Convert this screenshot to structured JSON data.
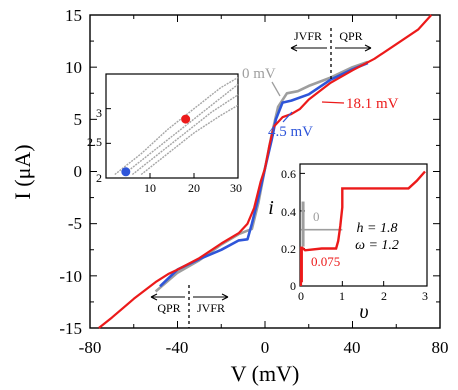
{
  "chart_data": [
    {
      "type": "line",
      "xlabel": "V (mV)",
      "ylabel": "I (μA)",
      "xlim": [
        -80,
        80
      ],
      "ylim": [
        -15,
        15
      ],
      "xticks": [
        "-80",
        "-40",
        "0",
        "40",
        "80"
      ],
      "yticks": [
        "15",
        "10",
        "5",
        "0",
        "-5",
        "-10",
        "-15"
      ],
      "series": [
        {
          "name": "0 mV",
          "color": "#9e9e9e",
          "x": [
            -50,
            -40,
            -30,
            -20,
            -12,
            -6,
            -3,
            0,
            3,
            6,
            10,
            15,
            20,
            30,
            40,
            47
          ],
          "y": [
            -11.5,
            -9.7,
            -8.5,
            -7.0,
            -6.0,
            -5.5,
            -3.0,
            0.3,
            3.5,
            6.2,
            7.5,
            7.7,
            8.2,
            9.0,
            10.0,
            10.5
          ]
        },
        {
          "name": "4.5 mV",
          "color": "#2e55d9",
          "x": [
            -48,
            -40,
            -30,
            -20,
            -12,
            -8,
            -6,
            -3,
            0,
            3,
            5,
            8,
            12,
            20,
            30,
            40,
            47
          ],
          "y": [
            -11.0,
            -9.4,
            -8.4,
            -7.5,
            -6.6,
            -6.5,
            -5.0,
            -2.5,
            0.3,
            3.0,
            5.0,
            6.6,
            6.8,
            7.4,
            8.8,
            9.8,
            10.4
          ]
        },
        {
          "name": "18.1 mV",
          "color": "#ec1a1a",
          "x": [
            -76,
            -70,
            -60,
            -50,
            -44,
            -40,
            -30,
            -20,
            -12,
            -8,
            -5,
            -2,
            0,
            2,
            4,
            8,
            12,
            16,
            20,
            30,
            40,
            50,
            60,
            70,
            76
          ],
          "y": [
            -15,
            -14.0,
            -12.2,
            -10.6,
            -9.8,
            -9.4,
            -8.3,
            -6.9,
            -5.9,
            -5.0,
            -3.5,
            -1.0,
            0.3,
            2.5,
            4.3,
            5.2,
            5.5,
            6.0,
            6.9,
            8.5,
            9.7,
            10.8,
            12.2,
            13.6,
            15
          ]
        }
      ],
      "annotations": {
        "top_left": "JVFR",
        "top_right": "QPR",
        "bottom_left": "QPR",
        "bottom_right": "JVFR",
        "series_labels": [
          "0 mV",
          "4.5 mV",
          "18.1 mV"
        ]
      }
    },
    {
      "type": "scatter",
      "xlim": [
        0,
        30
      ],
      "ylim": [
        2,
        3.5
      ],
      "xticks": [
        "10",
        "20",
        "30"
      ],
      "yticks": [
        "3",
        "2.5",
        "2"
      ],
      "markers": [
        {
          "color": "#2e55d9",
          "x": 4.5,
          "y": 2.09
        },
        {
          "color": "#ec1a1a",
          "x": 18.1,
          "y": 2.85
        }
      ],
      "grey_traces": [
        {
          "x": [
            2,
            8,
            14,
            20,
            26,
            30
          ],
          "y": [
            2.05,
            2.35,
            2.7,
            3.0,
            3.3,
            3.45
          ]
        },
        {
          "x": [
            4,
            10,
            16,
            22,
            28,
            30
          ],
          "y": [
            2.05,
            2.35,
            2.65,
            2.95,
            3.25,
            3.35
          ]
        },
        {
          "x": [
            6,
            12,
            18,
            24,
            30
          ],
          "y": [
            2.05,
            2.35,
            2.65,
            2.95,
            3.2
          ]
        },
        {
          "x": [
            8,
            14,
            20,
            26,
            30
          ],
          "y": [
            2.05,
            2.35,
            2.65,
            2.9,
            3.05
          ]
        }
      ]
    },
    {
      "type": "line",
      "xlabel": "υ",
      "ylabel": "i",
      "xlim": [
        0,
        3
      ],
      "ylim": [
        0,
        0.65
      ],
      "xticks": [
        "0",
        "1",
        "2",
        "3"
      ],
      "yticks": [
        "0.6",
        "0.4",
        "0.2",
        "0"
      ],
      "series": [
        {
          "color": "#9e9e9e",
          "x": [
            0,
            0.05,
            0.05,
            1.0
          ],
          "y": [
            0.3,
            0.3,
            0.3,
            0.3
          ]
        },
        {
          "color": "#ec1a1a",
          "x": [
            0,
            0.05,
            0.1,
            0.5,
            0.85,
            0.9,
            0.95,
            1.0,
            1.0,
            2.6,
            2.8,
            3.0
          ],
          "y": [
            0.2,
            0.2,
            0.19,
            0.2,
            0.2,
            0.24,
            0.32,
            0.42,
            0.52,
            0.52,
            0.56,
            0.61
          ]
        }
      ],
      "annotations": {
        "gray_value": "0",
        "red_value": "0.075",
        "params": [
          "h = 1.8",
          "ω = 1.2"
        ]
      }
    }
  ]
}
